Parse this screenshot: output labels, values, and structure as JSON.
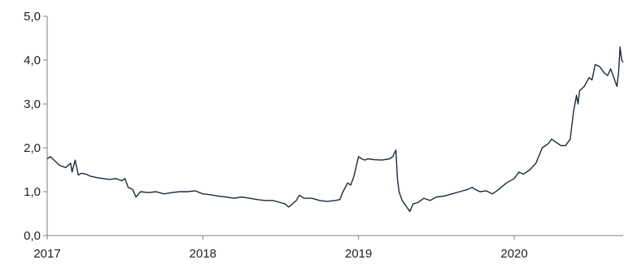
{
  "chart_data": {
    "type": "line",
    "title": "",
    "xlabel": "",
    "ylabel": "",
    "xlim": [
      2017.0,
      2020.7
    ],
    "ylim": [
      0,
      5
    ],
    "x_ticks": [
      2017,
      2018,
      2019,
      2020
    ],
    "x_tick_labels": [
      "2017",
      "2018",
      "2019",
      "2020"
    ],
    "y_ticks": [
      0,
      1,
      2,
      3,
      4,
      5
    ],
    "y_tick_labels": [
      "0,0",
      "1,0",
      "2,0",
      "3,0",
      "4,0",
      "5,0"
    ],
    "grid": false,
    "legend": "none",
    "series": [
      {
        "color": "#1b2a3a",
        "x": [
          2017.0,
          2017.02,
          2017.05,
          2017.08,
          2017.12,
          2017.15,
          2017.16,
          2017.18,
          2017.2,
          2017.22,
          2017.25,
          2017.28,
          2017.32,
          2017.36,
          2017.4,
          2017.44,
          2017.48,
          2017.5,
          2017.52,
          2017.55,
          2017.57,
          2017.6,
          2017.65,
          2017.7,
          2017.75,
          2017.8,
          2017.85,
          2017.9,
          2017.95,
          2018.0,
          2018.05,
          2018.1,
          2018.15,
          2018.2,
          2018.25,
          2018.3,
          2018.35,
          2018.4,
          2018.45,
          2018.5,
          2018.53,
          2018.55,
          2018.57,
          2018.6,
          2018.62,
          2018.65,
          2018.7,
          2018.75,
          2018.8,
          2018.85,
          2018.88,
          2018.9,
          2018.93,
          2018.95,
          2018.97,
          2019.0,
          2019.02,
          2019.04,
          2019.06,
          2019.1,
          2019.15,
          2019.2,
          2019.22,
          2019.24,
          2019.25,
          2019.26,
          2019.28,
          2019.3,
          2019.33,
          2019.35,
          2019.38,
          2019.42,
          2019.46,
          2019.5,
          2019.55,
          2019.6,
          2019.65,
          2019.7,
          2019.73,
          2019.75,
          2019.78,
          2019.82,
          2019.86,
          2019.9,
          2019.95,
          2020.0,
          2020.03,
          2020.06,
          2020.1,
          2020.14,
          2020.18,
          2020.22,
          2020.24,
          2020.26,
          2020.28,
          2020.3,
          2020.33,
          2020.36,
          2020.38,
          2020.4,
          2020.41,
          2020.42,
          2020.45,
          2020.48,
          2020.5,
          2020.52,
          2020.55,
          2020.58,
          2020.6,
          2020.62,
          2020.64,
          2020.66,
          2020.67,
          2020.68,
          2020.69,
          2020.7
        ],
        "y": [
          1.75,
          1.8,
          1.7,
          1.6,
          1.55,
          1.65,
          1.45,
          1.72,
          1.38,
          1.42,
          1.4,
          1.35,
          1.32,
          1.3,
          1.28,
          1.3,
          1.25,
          1.3,
          1.1,
          1.05,
          0.88,
          1.0,
          0.98,
          1.0,
          0.95,
          0.98,
          1.0,
          1.0,
          1.02,
          0.95,
          0.93,
          0.9,
          0.88,
          0.85,
          0.88,
          0.85,
          0.82,
          0.8,
          0.8,
          0.75,
          0.72,
          0.65,
          0.7,
          0.8,
          0.92,
          0.85,
          0.85,
          0.8,
          0.78,
          0.8,
          0.82,
          1.0,
          1.2,
          1.15,
          1.35,
          1.8,
          1.75,
          1.72,
          1.75,
          1.73,
          1.72,
          1.75,
          1.8,
          1.95,
          1.3,
          1.0,
          0.8,
          0.7,
          0.55,
          0.72,
          0.75,
          0.85,
          0.8,
          0.88,
          0.9,
          0.95,
          1.0,
          1.05,
          1.1,
          1.05,
          1.0,
          1.02,
          0.95,
          1.05,
          1.2,
          1.3,
          1.45,
          1.4,
          1.5,
          1.65,
          2.0,
          2.1,
          2.2,
          2.15,
          2.1,
          2.05,
          2.05,
          2.2,
          2.8,
          3.2,
          3.0,
          3.3,
          3.4,
          3.6,
          3.55,
          3.9,
          3.85,
          3.7,
          3.65,
          3.8,
          3.6,
          3.4,
          3.7,
          4.3,
          4.0,
          3.95
        ]
      }
    ]
  }
}
